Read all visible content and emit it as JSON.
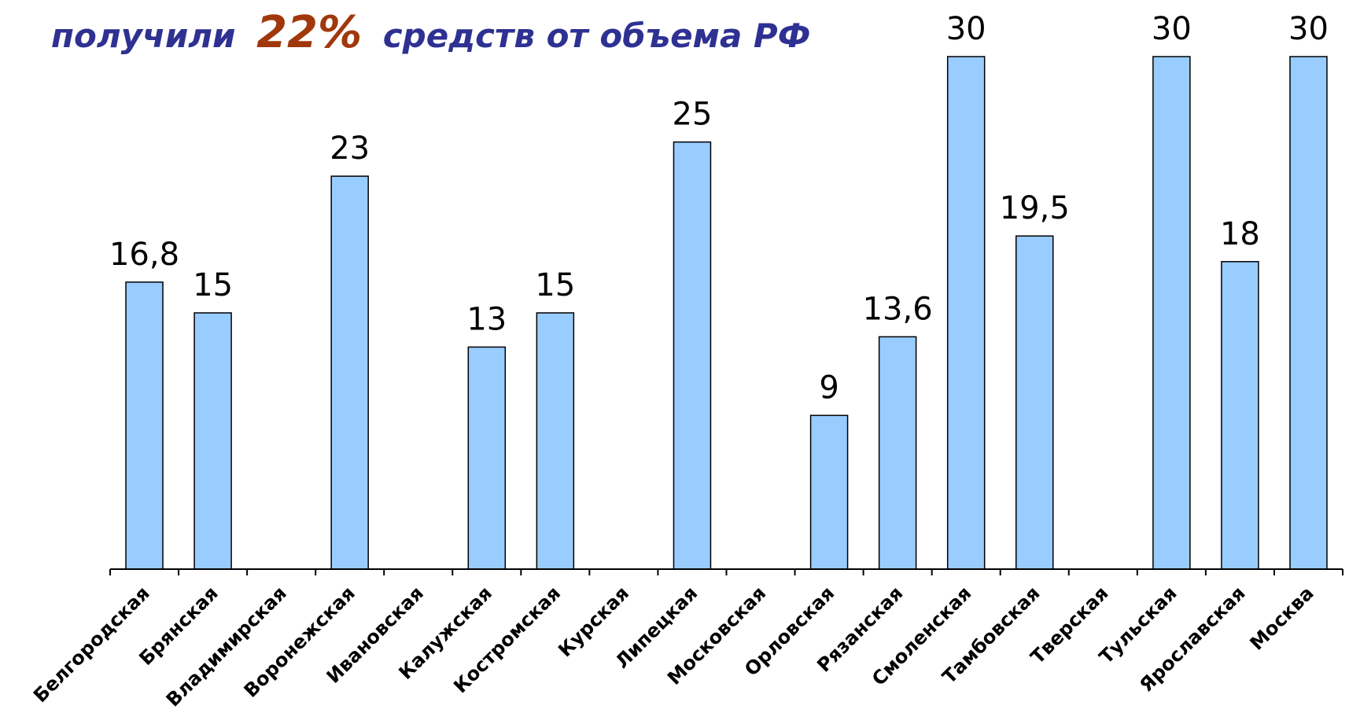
{
  "chart_data": {
    "type": "bar",
    "title": [
      "получили",
      "22%",
      "средств от объема РФ"
    ],
    "categories": [
      "Белгородская",
      "Брянская",
      "Владимирская",
      "Воронежская",
      "Ивановская",
      "Калужская",
      "Костромская",
      "Курская",
      "Липецкая",
      "Московская",
      "Орловская",
      "Рязанская",
      "Смоленская",
      "Тамбовская",
      "Тверская",
      "Тульская",
      "Ярославская",
      "Москва"
    ],
    "values": [
      16.8,
      15,
      null,
      23,
      null,
      13,
      15,
      null,
      25,
      null,
      9,
      13.6,
      30,
      19.5,
      null,
      30,
      18,
      30
    ],
    "value_labels": [
      "16,8",
      "15",
      null,
      "23",
      null,
      "13",
      "15",
      null,
      "25",
      null,
      "9",
      "13,6",
      "30",
      "19,5",
      null,
      "30",
      "18",
      "30"
    ],
    "color": "#99ccff",
    "ylim": [
      0,
      30
    ]
  }
}
